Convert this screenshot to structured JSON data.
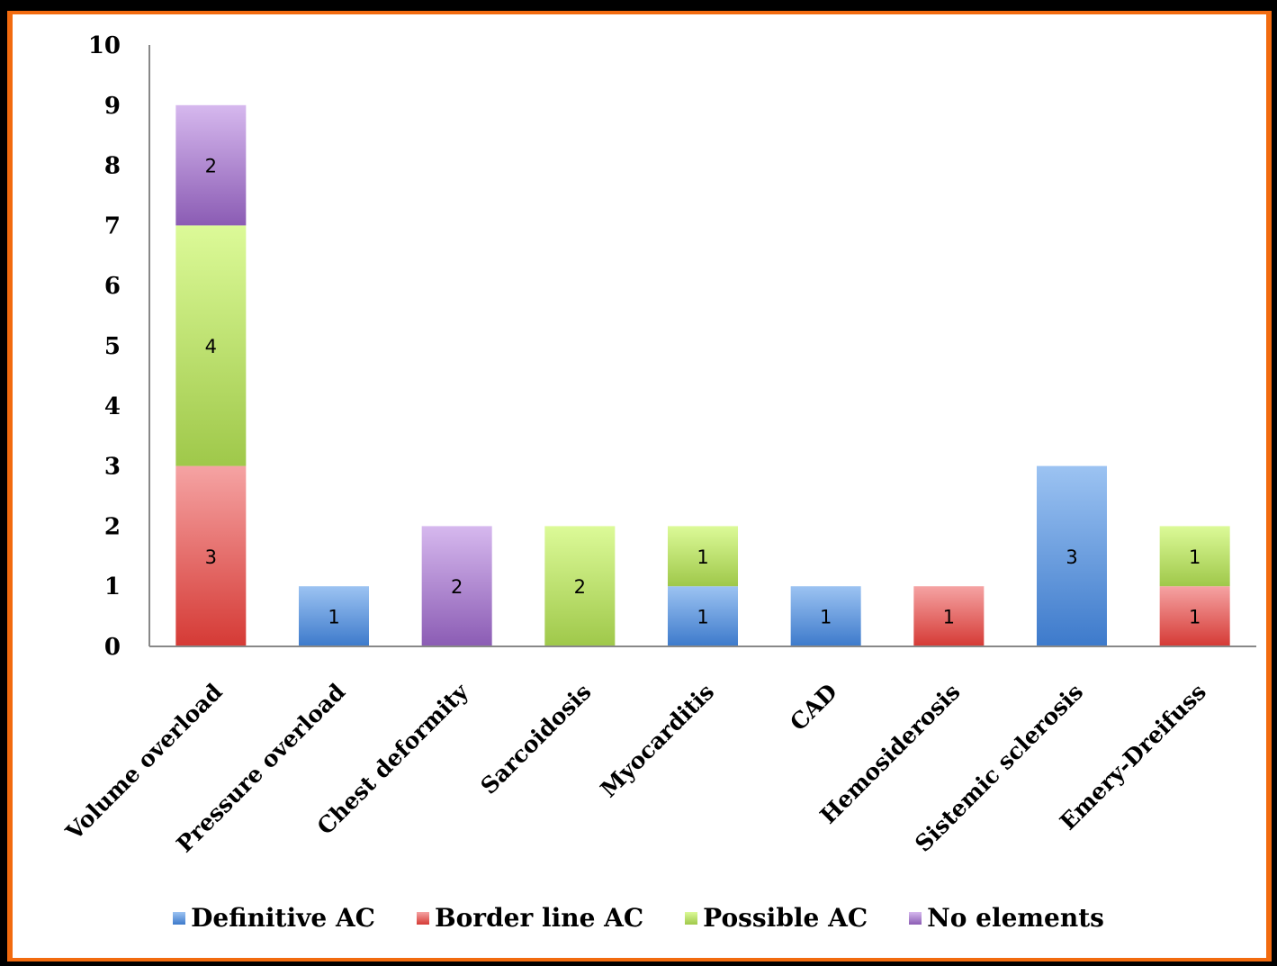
{
  "title_fragment": "",
  "colors": {
    "frame_border": "#f26b0f",
    "Definitive AC": [
      "#9cc3f2",
      "#3d7acb"
    ],
    "Border line AC": [
      "#f5a3a3",
      "#d53a35"
    ],
    "Possible AC": [
      "#dcfa98",
      "#9fc84a"
    ],
    "No elements": [
      "#d6b8ee",
      "#8b5cb4"
    ]
  },
  "chart_data": {
    "type": "bar",
    "stacked": true,
    "categories": [
      "Volume overload",
      "Pressure overload",
      "Chest deformity",
      "Sarcoidosis",
      "Myocarditis",
      "CAD",
      "Hemosiderosis",
      "Sistemic sclerosis",
      "Emery-Dreifuss"
    ],
    "series": [
      {
        "name": "Definitive AC",
        "values": [
          0,
          1,
          0,
          0,
          1,
          1,
          0,
          3,
          0
        ]
      },
      {
        "name": "Border line AC",
        "values": [
          3,
          0,
          0,
          0,
          0,
          0,
          1,
          0,
          1
        ]
      },
      {
        "name": "Possible AC",
        "values": [
          4,
          0,
          0,
          2,
          1,
          0,
          0,
          0,
          1
        ]
      },
      {
        "name": "No elements",
        "values": [
          2,
          0,
          2,
          0,
          0,
          0,
          0,
          0,
          0
        ]
      }
    ],
    "ylim": [
      0,
      10
    ],
    "yticks": [
      0,
      1,
      2,
      3,
      4,
      5,
      6,
      7,
      8,
      9,
      10
    ],
    "legend_position": "bottom",
    "grid": false,
    "data_labels": true
  }
}
